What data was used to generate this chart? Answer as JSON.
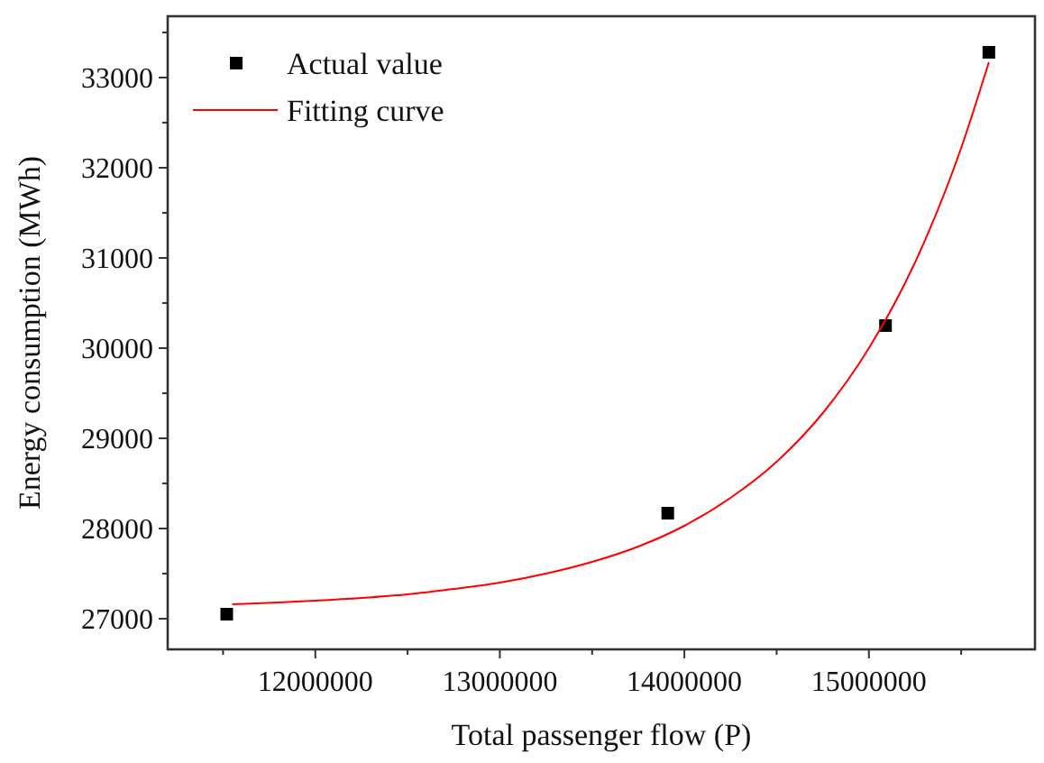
{
  "chart_data": {
    "type": "scatter",
    "xlabel": "Total passenger flow (P)",
    "ylabel": "Energy consumption (MWh)",
    "xlim": [
      11200000,
      15900000
    ],
    "ylim": [
      26660,
      33680
    ],
    "xticks": [
      {
        "value": 11500000,
        "label": null
      },
      12000000,
      {
        "value": 12500000,
        "label": null
      },
      13000000,
      {
        "value": 13500000,
        "label": null
      },
      14000000,
      {
        "value": 14500000,
        "label": null
      },
      15000000,
      {
        "value": 15500000,
        "label": null
      }
    ],
    "yticks": [
      27000,
      {
        "value": 27500,
        "label": null
      },
      28000,
      {
        "value": 28500,
        "label": null
      },
      29000,
      {
        "value": 29500,
        "label": null
      },
      30000,
      {
        "value": 30500,
        "label": null
      },
      31000,
      {
        "value": 31500,
        "label": null
      },
      32000,
      {
        "value": 32500,
        "label": null
      },
      33000,
      {
        "value": 33500,
        "label": null
      }
    ],
    "grid": false,
    "legend": "top left",
    "series": [
      {
        "name": "Actual value",
        "marker": "square",
        "color": "#000000",
        "x": [
          11520000,
          13910000,
          15090000,
          15650000
        ],
        "values": [
          27050,
          28170,
          30250,
          33280
        ]
      },
      {
        "name": "Fitting curve",
        "type": "line",
        "marker": "none",
        "line_style": "solid",
        "color": "#ff0000",
        "x": [
          11550000,
          11800000,
          12000000,
          12250000,
          12500000,
          12750000,
          13000000,
          13250000,
          13500000,
          13750000,
          14000000,
          14250000,
          14500000,
          14750000,
          15000000,
          15250000,
          15500000,
          15650000
        ],
        "values": [
          27160,
          27180,
          27200,
          27230,
          27270,
          27330,
          27400,
          27500,
          27630,
          27800,
          28030,
          28340,
          28740,
          29280,
          30000,
          30950,
          32220,
          33170
        ]
      }
    ]
  }
}
